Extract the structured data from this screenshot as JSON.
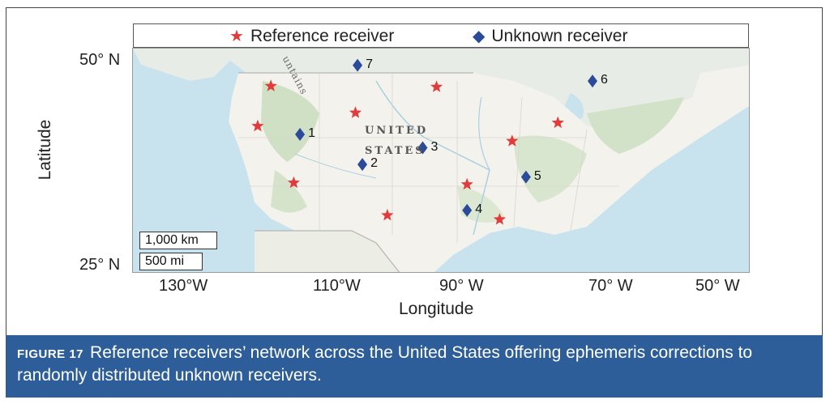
{
  "legend": {
    "reference": {
      "label": "Reference receiver",
      "color": "#e23b3b",
      "symbol": "star"
    },
    "unknown": {
      "label": "Unknown receiver",
      "color": "#2b4a9a",
      "symbol": "diamond"
    }
  },
  "axes": {
    "xlabel": "Longitude",
    "ylabel": "Latitude",
    "x_ticks": [
      "130°W",
      "110°W",
      "90° W",
      "70° W",
      "50° W"
    ],
    "y_ticks": [
      "50° N",
      "25° N"
    ]
  },
  "map": {
    "country_label_line1": "UNITED",
    "country_label_line2": "STATES",
    "mountain_label": "untains",
    "scale_km": "1,000 km",
    "scale_mi": "500 mi"
  },
  "reference_receivers": [
    {
      "lon": -116.6,
      "lat": 47.2
    },
    {
      "lon": -118.5,
      "lat": 42.4
    },
    {
      "lon": -113.3,
      "lat": 35.6
    },
    {
      "lon": -104.4,
      "lat": 44.0
    },
    {
      "lon": -92.7,
      "lat": 47.1
    },
    {
      "lon": -99.8,
      "lat": 31.7
    },
    {
      "lon": -88.3,
      "lat": 35.4
    },
    {
      "lon": -81.8,
      "lat": 40.6
    },
    {
      "lon": -75.2,
      "lat": 42.8
    },
    {
      "lon": -83.6,
      "lat": 31.2
    }
  ],
  "unknown_receivers": [
    {
      "id": "1",
      "lon": -112.4,
      "lat": 41.4
    },
    {
      "id": "2",
      "lon": -103.4,
      "lat": 37.8
    },
    {
      "id": "3",
      "lon": -94.7,
      "lat": 39.8
    },
    {
      "id": "4",
      "lon": -88.3,
      "lat": 32.3
    },
    {
      "id": "5",
      "lon": -79.8,
      "lat": 36.3
    },
    {
      "id": "6",
      "lon": -70.2,
      "lat": 47.8
    },
    {
      "id": "7",
      "lon": -104.1,
      "lat": 49.7
    }
  ],
  "caption": {
    "label": "FIGURE 17",
    "text": "Reference receivers’ network across the United States offering ephemeris corrections to randomly distributed unknown receivers."
  }
}
